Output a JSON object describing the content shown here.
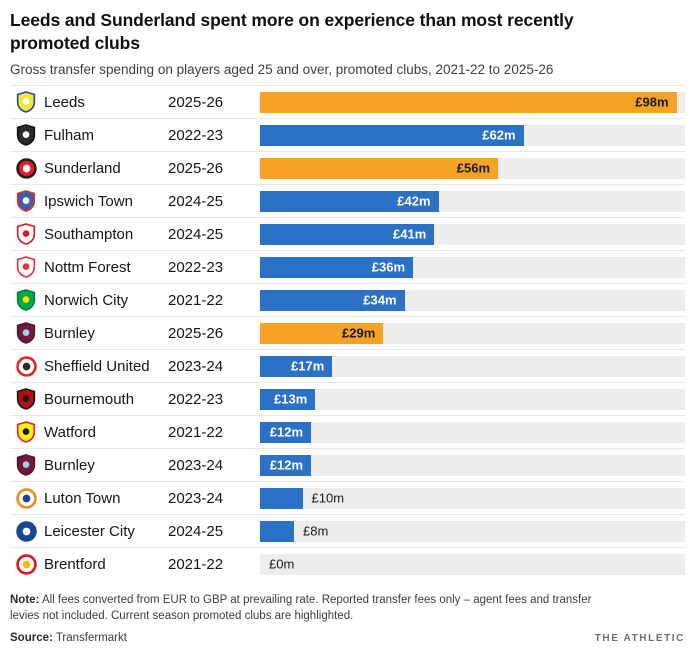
{
  "chart_data": {
    "type": "bar",
    "orientation": "horizontal",
    "title": "Leeds and Sunderland spent more on experience than most recently promoted clubs",
    "subtitle": "Gross transfer spending on players aged 25 and over, promoted clubs, 2021-22 to 2025-26",
    "unit": "million GBP",
    "xlim": [
      0,
      100
    ],
    "grid": false,
    "legend": false,
    "highlight_meaning": "Current season promoted clubs are highlighted (orange)",
    "colors": {
      "highlight": "#f6a324",
      "default": "#2b71c5",
      "track": "#ededed",
      "label_on_highlight": "#1a1a1a",
      "label_on_default": "#ffffff",
      "label_outside": "#1a1a1a"
    },
    "rows": [
      {
        "club": "Leeds",
        "season": "2025-26",
        "value": 98,
        "label": "£98m",
        "highlighted": true,
        "badge": {
          "shape": "shield",
          "bg": "#fce33c",
          "border": "#1d51a3",
          "accent": "#ffffff"
        }
      },
      {
        "club": "Fulham",
        "season": "2022-23",
        "value": 62,
        "label": "£62m",
        "highlighted": false,
        "badge": {
          "shape": "shield",
          "bg": "#2b2b2b",
          "border": "#111111",
          "accent": "#ffffff"
        }
      },
      {
        "club": "Sunderland",
        "season": "2025-26",
        "value": 56,
        "label": "£56m",
        "highlighted": true,
        "badge": {
          "shape": "circle",
          "bg": "#eb172b",
          "border": "#211e1e",
          "accent": "#ffffff"
        }
      },
      {
        "club": "Ipswich Town",
        "season": "2024-25",
        "value": 42,
        "label": "£42m",
        "highlighted": false,
        "badge": {
          "shape": "shield",
          "bg": "#3b5fa8",
          "border": "#dd3226",
          "accent": "#ffffff"
        }
      },
      {
        "club": "Southampton",
        "season": "2024-25",
        "value": 41,
        "label": "£41m",
        "highlighted": false,
        "badge": {
          "shape": "shield",
          "bg": "#ffffff",
          "border": "#d71920",
          "accent": "#d71920"
        }
      },
      {
        "club": "Nottm Forest",
        "season": "2022-23",
        "value": 36,
        "label": "£36m",
        "highlighted": false,
        "badge": {
          "shape": "shield",
          "bg": "#ffffff",
          "border": "#e53238",
          "accent": "#e53238"
        }
      },
      {
        "club": "Norwich City",
        "season": "2021-22",
        "value": 34,
        "label": "£34m",
        "highlighted": false,
        "badge": {
          "shape": "shield",
          "bg": "#00a650",
          "border": "#00813d",
          "accent": "#ffe600"
        }
      },
      {
        "club": "Burnley",
        "season": "2025-26",
        "value": 29,
        "label": "£29m",
        "highlighted": true,
        "badge": {
          "shape": "shield",
          "bg": "#70193d",
          "border": "#53132e",
          "accent": "#9bd3e1"
        }
      },
      {
        "club": "Sheffield United",
        "season": "2023-24",
        "value": 17,
        "label": "£17m",
        "highlighted": false,
        "badge": {
          "shape": "circle",
          "bg": "#ffffff",
          "border": "#e52520",
          "accent": "#2b2b2b"
        }
      },
      {
        "club": "Bournemouth",
        "season": "2022-23",
        "value": 13,
        "label": "£13m",
        "highlighted": false,
        "badge": {
          "shape": "shield",
          "bg": "#b50f14",
          "border": "#1a1a1a",
          "accent": "#1a1a1a"
        }
      },
      {
        "club": "Watford",
        "season": "2021-22",
        "value": 12,
        "label": "£12m",
        "highlighted": false,
        "badge": {
          "shape": "shield",
          "bg": "#fbee23",
          "border": "#ed2127",
          "accent": "#1a1a1a"
        }
      },
      {
        "club": "Burnley",
        "season": "2023-24",
        "value": 12,
        "label": "£12m",
        "highlighted": false,
        "badge": {
          "shape": "shield",
          "bg": "#70193d",
          "border": "#53132e",
          "accent": "#9bd3e1"
        }
      },
      {
        "club": "Luton Town",
        "season": "2023-24",
        "value": 10,
        "label": "£10m",
        "highlighted": false,
        "badge": {
          "shape": "circle",
          "bg": "#ffffff",
          "border": "#e88c26",
          "accent": "#27408b"
        }
      },
      {
        "club": "Leicester City",
        "season": "2024-25",
        "value": 8,
        "label": "£8m",
        "highlighted": false,
        "badge": {
          "shape": "circle",
          "bg": "#1b4396",
          "border": "#1b4396",
          "accent": "#ffffff"
        }
      },
      {
        "club": "Brentford",
        "season": "2021-22",
        "value": 0,
        "label": "£0m",
        "highlighted": false,
        "badge": {
          "shape": "circle",
          "bg": "#ffffff",
          "border": "#d71920",
          "accent": "#f5b80c"
        }
      }
    ]
  },
  "footer": {
    "note_label": "Note:",
    "note_text": " All fees converted from EUR to GBP at prevailing rate. Reported transfer fees only – agent fees and transfer levies not included. Current season promoted clubs are highlighted.",
    "source_label": "Source:",
    "source_text": " Transfermarkt",
    "brand": "THE ATHLETIC"
  }
}
